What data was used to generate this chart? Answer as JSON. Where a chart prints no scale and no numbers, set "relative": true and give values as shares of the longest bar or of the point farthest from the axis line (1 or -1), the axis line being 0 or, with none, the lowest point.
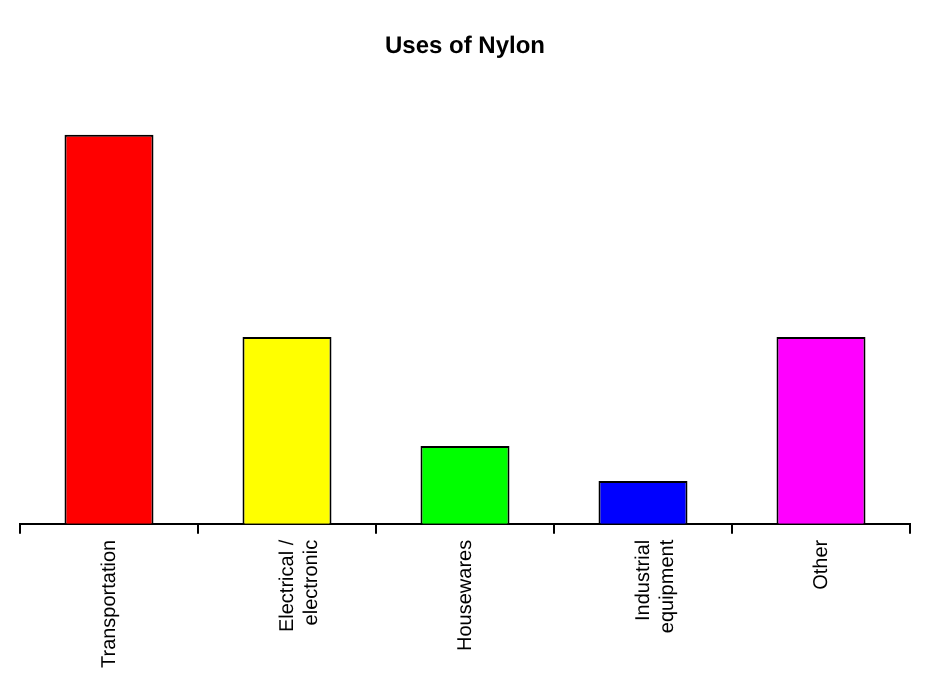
{
  "chart_data": {
    "type": "bar",
    "title": "Uses of Nylon",
    "relative": true,
    "categories": [
      "Transportation",
      "Electrical / electronic",
      "Housewares",
      "Industrial equipment",
      "Other"
    ],
    "values": [
      1,
      0.48,
      0.2,
      0.11,
      0.48
    ],
    "colors": [
      "#ff0000",
      "#ffff00",
      "#00ff00",
      "#0000ff",
      "#ff00ff"
    ],
    "grid": false,
    "legend": false
  }
}
